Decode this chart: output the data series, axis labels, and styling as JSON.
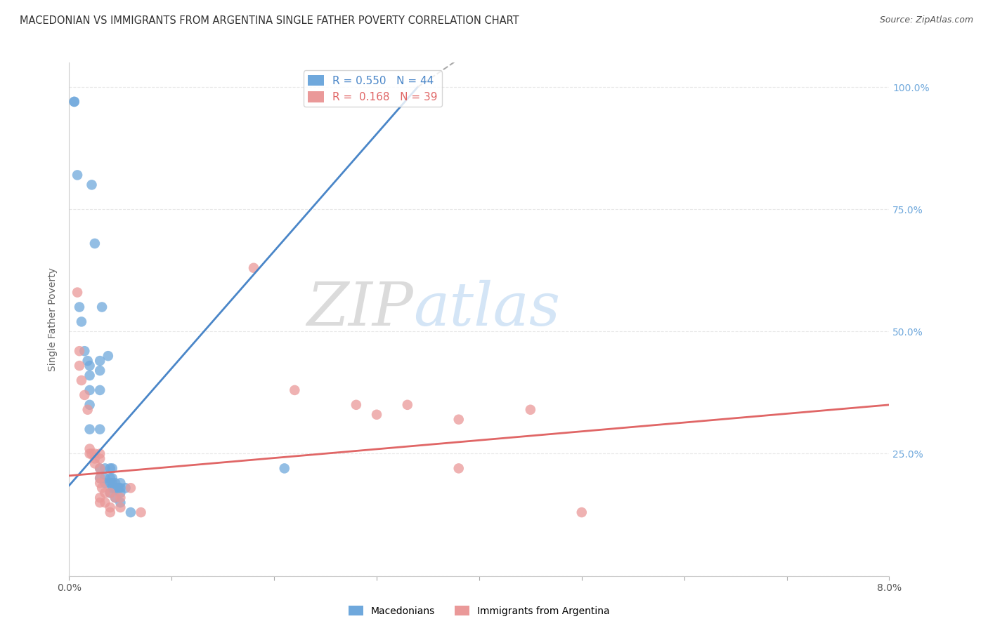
{
  "title": "MACEDONIAN VS IMMIGRANTS FROM ARGENTINA SINGLE FATHER POVERTY CORRELATION CHART",
  "source": "Source: ZipAtlas.com",
  "ylabel": "Single Father Poverty",
  "xlim": [
    0.0,
    0.08
  ],
  "ylim": [
    0.0,
    1.05
  ],
  "legend1_r": "0.550",
  "legend1_n": "44",
  "legend2_r": "0.168",
  "legend2_n": "39",
  "blue_color": "#6fa8dc",
  "pink_color": "#ea9999",
  "blue_line_color": "#4a86c8",
  "pink_line_color": "#e06666",
  "right_axis_color": "#6fa8dc",
  "blue_line_solid": [
    [
      0.0,
      0.185
    ],
    [
      0.034,
      1.0
    ]
  ],
  "blue_line_dashed": [
    [
      0.034,
      1.0
    ],
    [
      0.055,
      1.3
    ]
  ],
  "pink_line": [
    [
      0.0,
      0.205
    ],
    [
      0.08,
      0.35
    ]
  ],
  "macedonians": [
    [
      0.0005,
      0.97
    ],
    [
      0.0005,
      0.97
    ],
    [
      0.0008,
      0.82
    ],
    [
      0.001,
      0.55
    ],
    [
      0.0012,
      0.52
    ],
    [
      0.0015,
      0.46
    ],
    [
      0.0018,
      0.44
    ],
    [
      0.002,
      0.43
    ],
    [
      0.002,
      0.41
    ],
    [
      0.002,
      0.38
    ],
    [
      0.002,
      0.35
    ],
    [
      0.002,
      0.3
    ],
    [
      0.0022,
      0.8
    ],
    [
      0.0025,
      0.68
    ],
    [
      0.003,
      0.44
    ],
    [
      0.003,
      0.42
    ],
    [
      0.003,
      0.38
    ],
    [
      0.003,
      0.3
    ],
    [
      0.003,
      0.22
    ],
    [
      0.003,
      0.2
    ],
    [
      0.0032,
      0.55
    ],
    [
      0.0035,
      0.22
    ],
    [
      0.0035,
      0.2
    ],
    [
      0.0035,
      0.19
    ],
    [
      0.0038,
      0.45
    ],
    [
      0.004,
      0.22
    ],
    [
      0.004,
      0.2
    ],
    [
      0.004,
      0.19
    ],
    [
      0.004,
      0.17
    ],
    [
      0.0042,
      0.22
    ],
    [
      0.0042,
      0.2
    ],
    [
      0.0042,
      0.19
    ],
    [
      0.0042,
      0.18
    ],
    [
      0.0045,
      0.19
    ],
    [
      0.0045,
      0.18
    ],
    [
      0.0045,
      0.16
    ],
    [
      0.0048,
      0.18
    ],
    [
      0.005,
      0.19
    ],
    [
      0.005,
      0.18
    ],
    [
      0.005,
      0.17
    ],
    [
      0.005,
      0.15
    ],
    [
      0.0055,
      0.18
    ],
    [
      0.006,
      0.13
    ],
    [
      0.021,
      0.22
    ]
  ],
  "argentina": [
    [
      0.0008,
      0.58
    ],
    [
      0.001,
      0.46
    ],
    [
      0.001,
      0.43
    ],
    [
      0.0012,
      0.4
    ],
    [
      0.0015,
      0.37
    ],
    [
      0.0018,
      0.34
    ],
    [
      0.002,
      0.26
    ],
    [
      0.002,
      0.25
    ],
    [
      0.0022,
      0.25
    ],
    [
      0.0025,
      0.25
    ],
    [
      0.0025,
      0.24
    ],
    [
      0.0025,
      0.23
    ],
    [
      0.003,
      0.25
    ],
    [
      0.003,
      0.24
    ],
    [
      0.003,
      0.22
    ],
    [
      0.003,
      0.2
    ],
    [
      0.003,
      0.19
    ],
    [
      0.003,
      0.16
    ],
    [
      0.003,
      0.15
    ],
    [
      0.0032,
      0.18
    ],
    [
      0.0035,
      0.17
    ],
    [
      0.0035,
      0.15
    ],
    [
      0.004,
      0.17
    ],
    [
      0.004,
      0.14
    ],
    [
      0.004,
      0.13
    ],
    [
      0.0045,
      0.16
    ],
    [
      0.005,
      0.16
    ],
    [
      0.005,
      0.14
    ],
    [
      0.006,
      0.18
    ],
    [
      0.007,
      0.13
    ],
    [
      0.018,
      0.63
    ],
    [
      0.022,
      0.38
    ],
    [
      0.028,
      0.35
    ],
    [
      0.03,
      0.33
    ],
    [
      0.033,
      0.35
    ],
    [
      0.038,
      0.32
    ],
    [
      0.038,
      0.22
    ],
    [
      0.045,
      0.34
    ],
    [
      0.05,
      0.13
    ]
  ],
  "watermark_zip": "ZIP",
  "watermark_atlas": "atlas",
  "background_color": "#ffffff",
  "grid_color": "#e8e8e8"
}
